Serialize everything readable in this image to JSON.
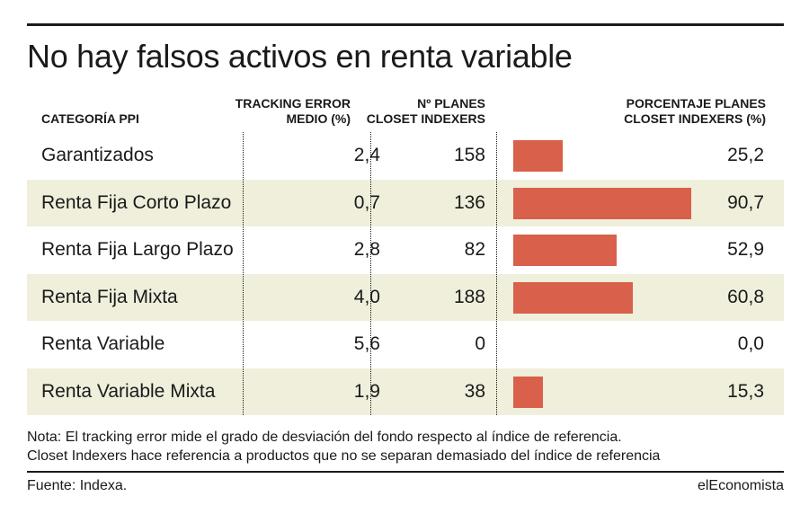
{
  "title": "No hay falsos activos en renta variable",
  "headers": {
    "category": "CATEGORÍA PPI",
    "tracking_error_line1": "TRACKING ERROR",
    "tracking_error_line2": "MEDIO (%)",
    "num_plans_line1": "Nº PLANES",
    "num_plans_line2": "CLOSET INDEXERS",
    "pct_line1": "PORCENTAJE PLANES",
    "pct_line2": "CLOSET INDEXERS (%)"
  },
  "chart_data": {
    "type": "table",
    "columns": [
      "CATEGORÍA PPI",
      "TRACKING ERROR MEDIO (%)",
      "Nº PLANES CLOSET INDEXERS",
      "PORCENTAJE PLANES CLOSET INDEXERS (%)"
    ],
    "bar_column": "PORCENTAJE PLANES CLOSET INDEXERS (%)",
    "bar_scale_max": 100,
    "rows": [
      {
        "category": "Garantizados",
        "tracking_error": "2,4",
        "plans": "158",
        "pct": "25,2",
        "pct_value": 25.2
      },
      {
        "category": "Renta Fija Corto Plazo",
        "tracking_error": "0,7",
        "plans": "136",
        "pct": "90,7",
        "pct_value": 90.7
      },
      {
        "category": "Renta Fija Largo Plazo",
        "tracking_error": "2,8",
        "plans": "82",
        "pct": "52,9",
        "pct_value": 52.9
      },
      {
        "category": "Renta Fija Mixta",
        "tracking_error": "4,0",
        "plans": "188",
        "pct": "60,8",
        "pct_value": 60.8
      },
      {
        "category": "Renta Variable",
        "tracking_error": "5,6",
        "plans": "0",
        "pct": "0,0",
        "pct_value": 0.0
      },
      {
        "category": "Renta Variable Mixta",
        "tracking_error": "1,9",
        "plans": "38",
        "pct": "15,3",
        "pct_value": 15.3
      }
    ]
  },
  "note_line1": "Nota: El tracking error mide el grado de desviación del fondo respecto al índice de referencia.",
  "note_line2": "Closet Indexers hace referencia a productos que no se separan demasiado del índice de referencia",
  "source": "Fuente: Indexa.",
  "brand": "elEconomista",
  "colors": {
    "bar": "#d9604a",
    "row_shade": "#efefdc",
    "text": "#1a1a1a"
  }
}
